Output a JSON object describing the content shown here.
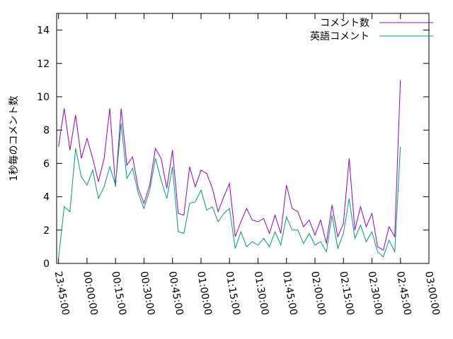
{
  "chart_data": {
    "type": "line",
    "ylabel": "1秒毎のコメント数",
    "x": [
      "23:45:00",
      "23:48:00",
      "23:51:00",
      "23:54:00",
      "23:57:00",
      "00:00:00",
      "00:03:00",
      "00:06:00",
      "00:09:00",
      "00:12:00",
      "00:15:00",
      "00:18:00",
      "00:21:00",
      "00:24:00",
      "00:27:00",
      "00:30:00",
      "00:33:00",
      "00:36:00",
      "00:39:00",
      "00:42:00",
      "00:45:00",
      "00:48:00",
      "00:51:00",
      "00:54:00",
      "00:57:00",
      "01:00:00",
      "01:03:00",
      "01:06:00",
      "01:09:00",
      "01:12:00",
      "01:15:00",
      "01:18:00",
      "01:21:00",
      "01:24:00",
      "01:27:00",
      "01:30:00",
      "01:33:00",
      "01:36:00",
      "01:39:00",
      "01:42:00",
      "01:45:00",
      "01:48:00",
      "01:51:00",
      "01:54:00",
      "01:57:00",
      "02:00:00",
      "02:03:00",
      "02:06:00",
      "02:09:00",
      "02:12:00",
      "02:15:00",
      "02:18:00",
      "02:21:00",
      "02:24:00",
      "02:27:00",
      "02:30:00",
      "02:33:00",
      "02:36:00",
      "02:39:00",
      "02:42:00",
      "02:45:00"
    ],
    "series": [
      {
        "name": "コメント数",
        "color": "#9400d3",
        "values": [
          7.0,
          9.3,
          6.8,
          8.9,
          6.3,
          7.5,
          6.3,
          4.9,
          6.3,
          9.3,
          4.6,
          9.3,
          5.9,
          6.4,
          4.5,
          3.6,
          4.7,
          6.9,
          6.3,
          4.5,
          6.8,
          3.0,
          2.9,
          5.8,
          4.6,
          5.6,
          5.4,
          4.5,
          3.1,
          4.0,
          4.8,
          1.6,
          2.5,
          3.3,
          2.6,
          2.5,
          2.7,
          1.8,
          2.9,
          1.8,
          4.7,
          3.3,
          3.1,
          2.2,
          2.6,
          1.7,
          2.6,
          1.2,
          3.5,
          1.6,
          2.4,
          6.3,
          2.0,
          3.4,
          2.2,
          3.0,
          1.0,
          0.8,
          2.2,
          1.6,
          11.0
        ]
      },
      {
        "name": "英語コメント",
        "color": "#009e73",
        "values": [
          0.3,
          3.4,
          3.1,
          6.9,
          5.2,
          4.7,
          5.6,
          3.9,
          4.6,
          5.8,
          4.7,
          8.4,
          5.1,
          5.7,
          4.2,
          3.3,
          4.4,
          6.3,
          5.0,
          3.9,
          5.8,
          1.9,
          1.8,
          3.6,
          3.7,
          4.4,
          3.2,
          3.4,
          2.5,
          3.0,
          3.3,
          0.9,
          1.9,
          1.0,
          1.3,
          1.1,
          1.5,
          1.0,
          1.9,
          1.1,
          2.8,
          2.0,
          2.0,
          1.2,
          1.8,
          1.1,
          1.3,
          0.7,
          2.9,
          0.9,
          1.8,
          3.9,
          1.5,
          2.3,
          1.3,
          1.9,
          0.7,
          0.4,
          1.4,
          0.7,
          7.0
        ]
      }
    ],
    "xlim": [
      "23:44:00",
      "03:00:00"
    ],
    "xticks": [
      "23:45:00",
      "00:00:00",
      "00:15:00",
      "00:30:00",
      "00:45:00",
      "01:00:00",
      "01:15:00",
      "01:30:00",
      "01:45:00",
      "02:00:00",
      "02:15:00",
      "02:30:00",
      "02:45:00",
      "03:00:00"
    ],
    "ylim": [
      0,
      15
    ],
    "yticks": [
      0,
      2,
      4,
      6,
      8,
      10,
      12,
      14
    ],
    "legend": "top-right"
  }
}
